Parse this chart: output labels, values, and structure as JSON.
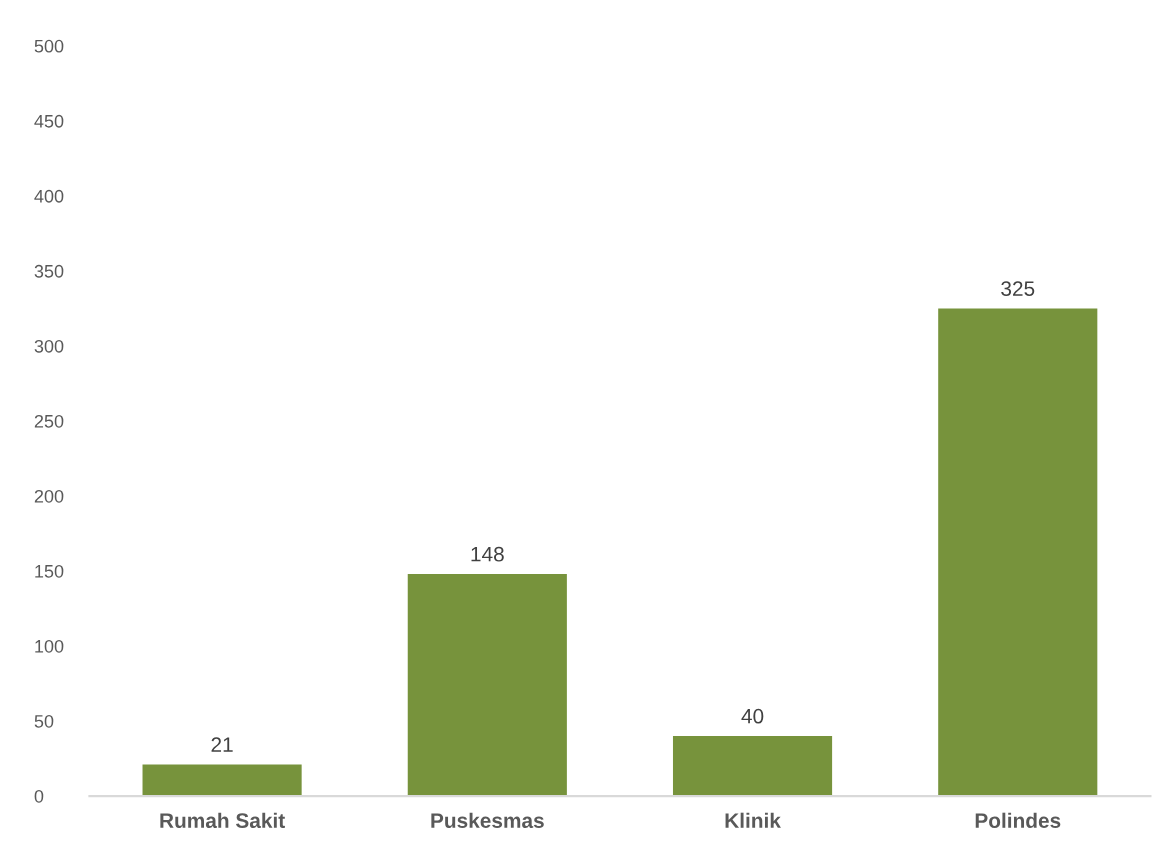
{
  "chart_data": {
    "type": "bar",
    "categories": [
      "Rumah Sakit",
      "Puskesmas",
      "Klinik",
      "Polindes"
    ],
    "values": [
      21,
      148,
      40,
      325
    ],
    "color": "#77933c",
    "ylim": [
      0,
      500
    ],
    "yticks": [
      0,
      50,
      100,
      150,
      200,
      250,
      300,
      350,
      400,
      450,
      500
    ],
    "grid": false,
    "data_labels": true
  }
}
